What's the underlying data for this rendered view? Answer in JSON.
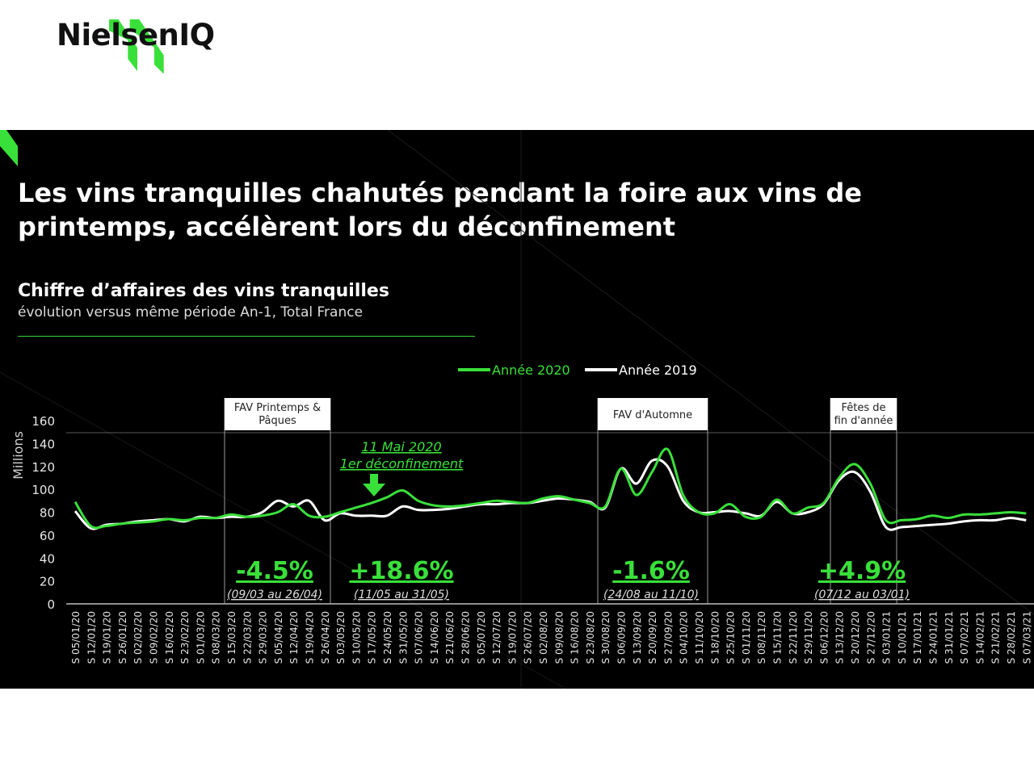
{
  "brand": {
    "name": "NielsenIQ",
    "accent": "#39e03a"
  },
  "slide": {
    "headline_line1": "Les vins tranquilles chahutés pendant la foire aux vins de",
    "headline_line2": "printemps, accélèrent lors du déconfinement",
    "subtitle": "Chiffre d’affaires des vins tranquilles",
    "subsubtitle": "évolution versus même période An-1, Total France"
  },
  "chart_data": {
    "type": "line",
    "ylabel": "Millions",
    "ylim": [
      0,
      160
    ],
    "yticks": [
      0,
      20,
      40,
      60,
      80,
      100,
      120,
      140,
      160
    ],
    "legend_position": "top",
    "categories": [
      "S 05/01/20",
      "S 12/01/20",
      "S 19/01/20",
      "S 26/01/20",
      "S 02/02/20",
      "S 09/02/20",
      "S 16/02/20",
      "S 23/02/20",
      "S 01/03/20",
      "S 08/03/20",
      "S 15/03/20",
      "S 22/03/20",
      "S 29/03/20",
      "S 05/04/20",
      "S 12/04/20",
      "S 19/04/20",
      "S 26/04/20",
      "S 03/05/20",
      "S 10/05/20",
      "S 17/05/20",
      "S 24/05/20",
      "S 31/05/20",
      "S 07/06/20",
      "S 14/06/20",
      "S 21/06/20",
      "S 28/06/20",
      "S 05/07/20",
      "S 12/07/20",
      "S 19/07/20",
      "S 26/07/20",
      "S 02/08/20",
      "S 09/08/20",
      "S 16/08/20",
      "S 23/08/20",
      "S 30/08/20",
      "S 06/09/20",
      "S 13/09/20",
      "S 20/09/20",
      "S 27/09/20",
      "S 04/10/20",
      "S 11/10/20",
      "S 18/10/20",
      "S 25/10/20",
      "S 01/11/20",
      "S 08/11/20",
      "S 15/11/20",
      "S 22/11/20",
      "S 29/11/20",
      "S 06/12/20",
      "S 13/12/20",
      "S 20/12/20",
      "S 27/12/20",
      "S 03/01/21",
      "S 10/01/21",
      "S 17/01/21",
      "S 24/01/21",
      "S 31/01/21",
      "S 07/02/21",
      "S 14/02/21",
      "S 21/02/21",
      "S 28/02/21",
      "S 07/03/21"
    ],
    "series": [
      {
        "name": "Année 2020",
        "color": "#39e03a",
        "values": [
          89,
          68,
          68,
          70,
          71,
          72,
          74,
          73,
          75,
          75,
          78,
          76,
          77,
          80,
          87,
          77,
          76,
          80,
          84,
          88,
          93,
          99,
          90,
          86,
          85,
          86,
          88,
          90,
          89,
          88,
          92,
          94,
          91,
          88,
          85,
          118,
          95,
          115,
          135,
          95,
          80,
          79,
          87,
          76,
          76,
          91,
          79,
          84,
          88,
          110,
          122,
          105,
          73,
          73,
          74,
          77,
          75,
          78,
          78,
          79,
          80,
          79
        ]
      },
      {
        "name": "Année 2019",
        "color": "#ffffff",
        "values": [
          81,
          66,
          69,
          70,
          72,
          73,
          74,
          72,
          76,
          75,
          76,
          76,
          80,
          90,
          85,
          90,
          73,
          79,
          77,
          77,
          77,
          85,
          82,
          82,
          83,
          85,
          87,
          87,
          88,
          88,
          90,
          92,
          91,
          89,
          84,
          118,
          105,
          125,
          120,
          90,
          80,
          80,
          81,
          79,
          77,
          89,
          79,
          80,
          87,
          108,
          115,
          98,
          67,
          67,
          68,
          69,
          70,
          72,
          73,
          73,
          75,
          73
        ]
      }
    ],
    "events": [
      {
        "label": "FAV Printemps & Pâques",
        "change": "-4.5%",
        "period": "(09/03 au 26/04)"
      },
      {
        "label": "",
        "change": "+18.6%",
        "period": "(11/05 au 31/05)"
      },
      {
        "label": "FAV d'Automne",
        "change": "-1.6%",
        "period": "(24/08 au 11/10)"
      },
      {
        "label": "Fêtes de fin d'année",
        "change": "+4.9%",
        "period": "(07/12 au 03/01)"
      }
    ],
    "annotation": {
      "line1": "11 Mai 2020",
      "line2": "1er déconfinement"
    }
  }
}
